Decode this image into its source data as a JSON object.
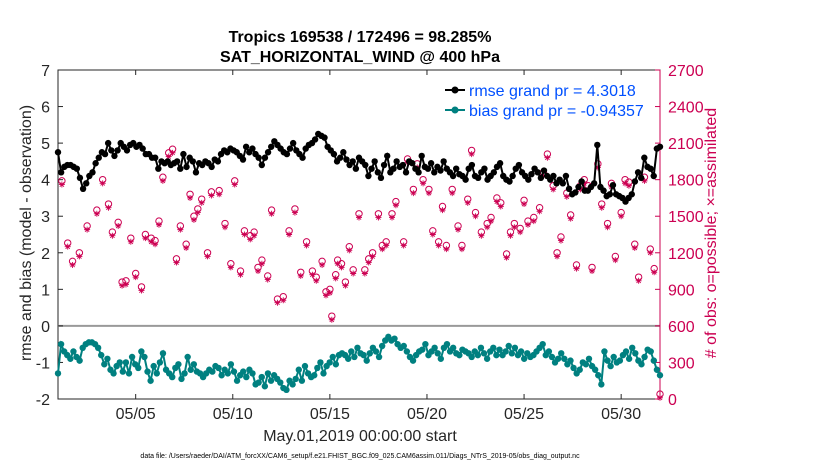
{
  "chart_data": {
    "type": "line",
    "title_line1": "Tropics 169538 / 172496 = 98.285%",
    "title_line2": "SAT_HORIZONTAL_WIND @ 400 hPa",
    "xlabel": "May.01,2019 00:00:00 start",
    "ylabel_left": "rmse and bias (model - observation)",
    "ylabel_right": "# of obs: o=possible; ×=assimilated",
    "xlim": [
      1,
      32
    ],
    "ylim_left": [
      -2,
      7
    ],
    "ylim_right": [
      0,
      2700
    ],
    "x_ticks": [
      5,
      10,
      15,
      20,
      25,
      30
    ],
    "x_tick_labels": [
      "05/05",
      "05/10",
      "05/15",
      "05/20",
      "05/25",
      "05/30"
    ],
    "y_ticks_left": [
      "-2",
      "-1",
      "0",
      "1",
      "2",
      "3",
      "4",
      "5",
      "6",
      "7"
    ],
    "y_ticks_right": [
      "0",
      "300",
      "600",
      "900",
      "1200",
      "1500",
      "1800",
      "2100",
      "2400",
      "2700"
    ],
    "footnote": "data file: /Users/raeder/DAI/ATM_forcXX/CAM6_setup/f.e21.FHIST_BGC.f09_025.CAM6assim.011/Diags_NTrS_2019-05/obs_diag_output.nc",
    "colors": {
      "rmse": "#000000",
      "bias": "#008080",
      "obs": "#cc0052",
      "legend_text": "#0050ff",
      "zero_line": "#999999"
    },
    "series": [
      {
        "name": "rmse grand pr = 4.3018",
        "values": [
          4.75,
          4.2,
          4.35,
          4.4,
          4.4,
          4.35,
          4.3,
          4.05,
          3.75,
          3.9,
          4.1,
          4.2,
          4.45,
          4.6,
          4.75,
          4.7,
          5.0,
          4.8,
          4.65,
          4.8,
          5.0,
          4.9,
          4.8,
          4.95,
          5.0,
          4.9,
          4.95,
          4.85,
          4.7,
          4.7,
          4.6,
          4.6,
          4.3,
          4.5,
          4.45,
          4.5,
          4.4,
          4.45,
          4.5,
          4.3,
          4.7,
          4.35,
          4.6,
          4.5,
          4.2,
          4.45,
          4.4,
          4.5,
          4.45,
          4.35,
          4.55,
          4.5,
          4.7,
          4.8,
          4.75,
          4.85,
          4.8,
          4.75,
          4.65,
          4.55,
          4.9,
          4.75,
          4.85,
          4.7,
          4.6,
          4.4,
          4.6,
          4.75,
          4.9,
          5.05,
          4.95,
          4.85,
          4.75,
          4.7,
          4.85,
          5.0,
          4.8,
          4.7,
          4.6,
          4.85,
          4.95,
          5.0,
          5.1,
          5.25,
          5.2,
          5.15,
          4.9,
          4.8,
          4.7,
          4.5,
          4.6,
          4.75,
          4.55,
          4.4,
          4.5,
          4.3,
          4.6,
          4.5,
          4.4,
          4.1,
          4.3,
          4.5,
          4.2,
          4.05,
          4.4,
          4.65,
          4.2,
          4.3,
          4.5,
          4.35,
          4.4,
          4.2,
          4.5,
          4.45,
          4.3,
          4.2,
          4.65,
          4.35,
          4.3,
          4.45,
          4.2,
          4.35,
          4.25,
          4.5,
          4.3,
          4.2,
          4.1,
          4.3,
          4.15,
          4.1,
          4.0,
          4.3,
          4.4,
          4.1,
          4.05,
          4.2,
          4.3,
          4.0,
          4.1,
          4.2,
          4.35,
          4.45,
          4.1,
          4.0,
          3.95,
          4.1,
          4.3,
          4.4,
          4.2,
          4.1,
          4.0,
          4.15,
          4.3,
          4.2,
          4.05,
          4.25,
          4.1,
          4.0,
          4.1,
          3.9,
          4.0,
          3.9,
          4.1,
          3.75,
          3.6,
          3.65,
          3.8,
          3.95,
          3.7,
          3.7,
          3.8,
          3.9,
          4.95,
          3.8,
          3.7,
          3.55,
          3.6,
          3.85,
          3.6,
          3.55,
          3.5,
          3.4,
          3.5,
          3.6,
          3.95,
          4.2,
          4.05,
          4.6,
          4.35,
          4.3,
          4.1,
          4.85,
          4.9
        ]
      },
      {
        "name": "bias grand pr = -0.94357",
        "values": [
          -1.3,
          -0.5,
          -0.7,
          -0.8,
          -0.9,
          -0.7,
          -0.85,
          -0.95,
          -0.6,
          -0.5,
          -0.45,
          -0.45,
          -0.5,
          -0.6,
          -0.8,
          -1.05,
          -0.9,
          -1.2,
          -1.3,
          -1.1,
          -1.0,
          -1.25,
          -1.0,
          -1.3,
          -0.85,
          -1.05,
          -1.15,
          -0.7,
          -0.85,
          -1.25,
          -1.5,
          -1.1,
          -1.3,
          -1.0,
          -0.75,
          -1.2,
          -1.3,
          -1.4,
          -1.15,
          -1.05,
          -1.45,
          -1.3,
          -0.85,
          -1.2,
          -1.05,
          -1.25,
          -1.3,
          -1.4,
          -1.3,
          -1.2,
          -1.25,
          -1.1,
          -1.15,
          -1.35,
          -1.2,
          -1.3,
          -1.05,
          -1.25,
          -1.5,
          -1.35,
          -1.25,
          -1.4,
          -1.2,
          -1.3,
          -1.6,
          -1.55,
          -1.4,
          -1.65,
          -1.3,
          -1.5,
          -1.35,
          -1.45,
          -1.55,
          -1.7,
          -1.75,
          -1.5,
          -1.6,
          -1.45,
          -1.2,
          -1.5,
          -1.1,
          -1.3,
          -1.4,
          -1.35,
          -1.15,
          -1.0,
          -1.3,
          -1.1,
          -1.0,
          -0.85,
          -1.05,
          -0.8,
          -0.75,
          -0.8,
          -0.9,
          -0.7,
          -0.85,
          -0.6,
          -0.75,
          -0.8,
          -0.95,
          -0.75,
          -0.6,
          -0.7,
          -0.85,
          -0.55,
          -0.4,
          -0.3,
          -0.4,
          -0.35,
          -0.5,
          -0.6,
          -0.55,
          -0.7,
          -0.85,
          -0.95,
          -0.8,
          -0.7,
          -0.65,
          -0.5,
          -0.8,
          -0.7,
          -0.6,
          -0.75,
          -0.9,
          -0.6,
          -0.5,
          -0.7,
          -0.6,
          -0.75,
          -0.8,
          -0.65,
          -0.7,
          -0.75,
          -0.85,
          -0.7,
          -0.8,
          -0.6,
          -0.75,
          -0.9,
          -0.7,
          -0.6,
          -0.8,
          -0.65,
          -0.8,
          -0.7,
          -0.55,
          -0.75,
          -0.6,
          -0.8,
          -0.7,
          -0.9,
          -0.75,
          -0.85,
          -0.8,
          -0.7,
          -0.6,
          -0.5,
          -0.8,
          -0.7,
          -0.85,
          -1.0,
          -0.9,
          -0.75,
          -0.9,
          -1.05,
          -0.95,
          -1.15,
          -1.3,
          -1.2,
          -1.0,
          -1.05,
          -0.9,
          -1.1,
          -1.2,
          -1.35,
          -1.6,
          -0.7,
          -0.95,
          -1.1,
          -0.85,
          -1.0,
          -0.95,
          -0.8,
          -0.7,
          -0.9,
          -0.6,
          -0.75,
          -0.95,
          -1.05,
          -0.85,
          -0.65,
          -0.7,
          -0.95,
          -1.2,
          -1.35
        ]
      }
    ],
    "obs_possible": [
      [
        1.2,
        1790
      ],
      [
        1.5,
        1280
      ],
      [
        1.75,
        1130
      ],
      [
        2.1,
        1200
      ],
      [
        2.5,
        1420
      ],
      [
        3.0,
        1550
      ],
      [
        3.3,
        1800
      ],
      [
        3.6,
        1600
      ],
      [
        3.8,
        1370
      ],
      [
        4.1,
        1450
      ],
      [
        4.3,
        960
      ],
      [
        4.5,
        970
      ],
      [
        4.75,
        1320
      ],
      [
        5.0,
        1030
      ],
      [
        5.3,
        920
      ],
      [
        5.5,
        1350
      ],
      [
        5.8,
        1320
      ],
      [
        6.0,
        1300
      ],
      [
        6.2,
        1460
      ],
      [
        6.4,
        1820
      ],
      [
        6.7,
        2020
      ],
      [
        6.9,
        2050
      ],
      [
        7.1,
        1150
      ],
      [
        7.3,
        1420
      ],
      [
        7.6,
        1270
      ],
      [
        7.8,
        1680
      ],
      [
        8.0,
        1500
      ],
      [
        8.2,
        1560
      ],
      [
        8.4,
        1640
      ],
      [
        8.7,
        1200
      ],
      [
        8.9,
        1700
      ],
      [
        9.3,
        1710
      ],
      [
        9.6,
        1440
      ],
      [
        9.9,
        1110
      ],
      [
        10.1,
        1790
      ],
      [
        10.4,
        1050
      ],
      [
        10.6,
        1380
      ],
      [
        10.9,
        1340
      ],
      [
        11.1,
        1370
      ],
      [
        11.3,
        1080
      ],
      [
        11.5,
        1140
      ],
      [
        11.8,
        1010
      ],
      [
        12.0,
        1550
      ],
      [
        12.3,
        820
      ],
      [
        12.6,
        840
      ],
      [
        12.9,
        1380
      ],
      [
        13.2,
        1560
      ],
      [
        13.5,
        1040
      ],
      [
        13.8,
        1290
      ],
      [
        14.1,
        1050
      ],
      [
        14.3,
        1000
      ],
      [
        14.6,
        1130
      ],
      [
        14.8,
        880
      ],
      [
        15.0,
        900
      ],
      [
        15.1,
        680
      ],
      [
        15.3,
        1020
      ],
      [
        15.4,
        1140
      ],
      [
        15.6,
        1110
      ],
      [
        15.8,
        960
      ],
      [
        16.0,
        1250
      ],
      [
        16.2,
        1060
      ],
      [
        16.5,
        1520
      ],
      [
        16.8,
        1060
      ],
      [
        17.0,
        1150
      ],
      [
        17.2,
        1200
      ],
      [
        17.5,
        1520
      ],
      [
        17.7,
        1260
      ],
      [
        17.9,
        1290
      ],
      [
        18.2,
        1520
      ],
      [
        18.4,
        1620
      ],
      [
        18.8,
        1290
      ],
      [
        19.0,
        1970
      ],
      [
        19.3,
        1720
      ],
      [
        19.5,
        1930
      ],
      [
        19.8,
        1800
      ],
      [
        20.1,
        1720
      ],
      [
        20.3,
        1380
      ],
      [
        20.6,
        1290
      ],
      [
        20.8,
        1580
      ],
      [
        21.0,
        1260
      ],
      [
        21.3,
        1720
      ],
      [
        21.6,
        1420
      ],
      [
        21.8,
        1260
      ],
      [
        22.1,
        1640
      ],
      [
        22.3,
        2040
      ],
      [
        22.5,
        1530
      ],
      [
        22.8,
        1370
      ],
      [
        23.1,
        1440
      ],
      [
        23.3,
        1490
      ],
      [
        23.6,
        1650
      ],
      [
        23.8,
        1610
      ],
      [
        24.1,
        1190
      ],
      [
        24.3,
        1370
      ],
      [
        24.5,
        1440
      ],
      [
        24.8,
        1400
      ],
      [
        25.0,
        1630
      ],
      [
        25.2,
        1460
      ],
      [
        25.5,
        1490
      ],
      [
        25.8,
        1570
      ],
      [
        26.0,
        1860
      ],
      [
        26.2,
        2010
      ],
      [
        26.5,
        1750
      ],
      [
        26.7,
        1200
      ],
      [
        26.9,
        1330
      ],
      [
        27.2,
        1690
      ],
      [
        27.4,
        1510
      ],
      [
        27.7,
        1100
      ],
      [
        27.9,
        1750
      ],
      [
        28.1,
        1800
      ],
      [
        28.3,
        1750
      ],
      [
        28.5,
        1080
      ],
      [
        28.8,
        1930
      ],
      [
        29.0,
        1600
      ],
      [
        29.3,
        1440
      ],
      [
        29.5,
        1770
      ],
      [
        29.7,
        1170
      ],
      [
        30.0,
        1530
      ],
      [
        30.2,
        1800
      ],
      [
        30.4,
        1780
      ],
      [
        30.7,
        1270
      ],
      [
        30.9,
        1000
      ],
      [
        31.2,
        1820
      ],
      [
        31.5,
        1230
      ],
      [
        31.7,
        1070
      ],
      [
        32.0,
        40
      ]
    ],
    "obs_assimilated_offset": -30
  }
}
